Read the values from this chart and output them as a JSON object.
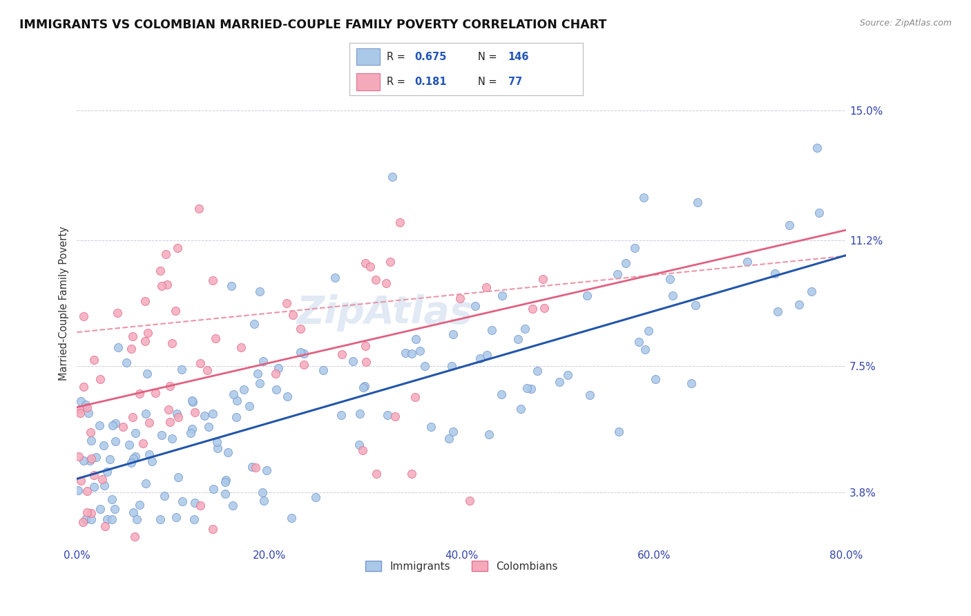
{
  "title": "IMMIGRANTS VS COLOMBIAN MARRIED-COUPLE FAMILY POVERTY CORRELATION CHART",
  "source": "Source: ZipAtlas.com",
  "ylabel": "Married-Couple Family Poverty",
  "xlim": [
    0.0,
    80.0
  ],
  "ylim": [
    2.2,
    16.5
  ],
  "yticks": [
    3.8,
    7.5,
    11.2,
    15.0
  ],
  "xticks": [
    0.0,
    20.0,
    40.0,
    60.0,
    80.0
  ],
  "xtick_labels": [
    "0.0%",
    "20.0%",
    "40.0%",
    "60.0%",
    "80.0%"
  ],
  "ytick_labels": [
    "3.8%",
    "7.5%",
    "11.2%",
    "15.0%"
  ],
  "immigrants_color": "#aac8e8",
  "colombians_color": "#f5aabb",
  "immigrants_edge_color": "#7799cc",
  "colombians_edge_color": "#e07090",
  "line_immigrants_color": "#2255aa",
  "line_colombians_color": "#e06080",
  "line_colombians_dashed_color": "#e896a8",
  "scatter_size": 75,
  "watermark": "ZipAtlas",
  "slope_imm": 0.082,
  "intercept_imm": 4.2,
  "slope_col": 0.065,
  "intercept_col": 6.3,
  "slope_col_dash": 0.028,
  "intercept_col_dash": 8.5
}
